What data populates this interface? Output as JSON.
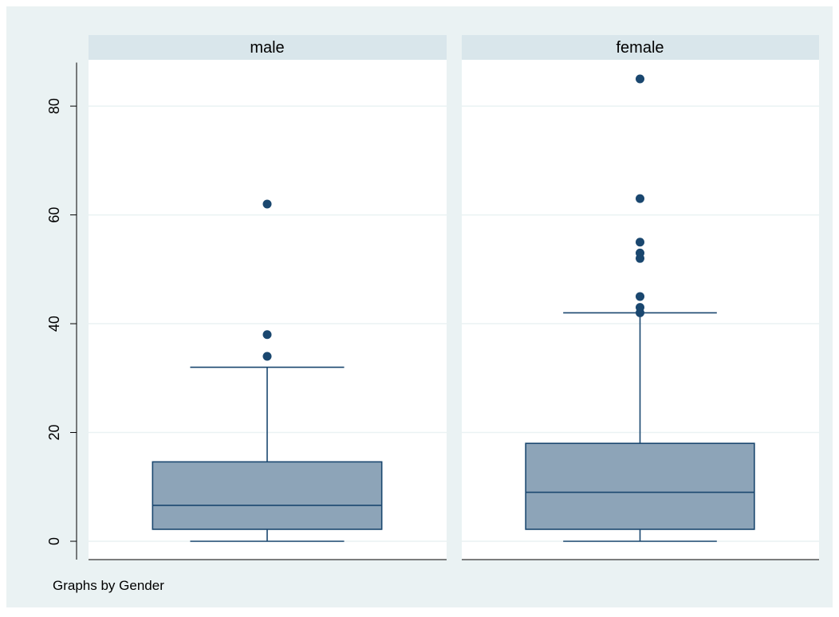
{
  "chart_data": {
    "type": "box",
    "note": "Graphs by Gender",
    "ylim": [
      0,
      88
    ],
    "yticks": [
      0,
      20,
      40,
      60,
      80
    ],
    "grid": true,
    "colors": {
      "background": "#eaf2f3",
      "plot": "#ffffff",
      "strip": "#d9e6eb",
      "box_fill": "#8da4b8",
      "box_line": "#1a476f",
      "grid": "#eaf2f3",
      "text": "#000000"
    },
    "panels": [
      {
        "label": "male",
        "box": {
          "whisker_low": 0,
          "q1": 2.2,
          "median": 6.6,
          "q3": 14.6,
          "whisker_high": 32
        },
        "outliers": [
          34,
          38,
          62
        ]
      },
      {
        "label": "female",
        "box": {
          "whisker_low": 0,
          "q1": 2.2,
          "median": 9,
          "q3": 18,
          "whisker_high": 42
        },
        "outliers": [
          42,
          43,
          45,
          52,
          53,
          55,
          63,
          85
        ]
      }
    ]
  }
}
